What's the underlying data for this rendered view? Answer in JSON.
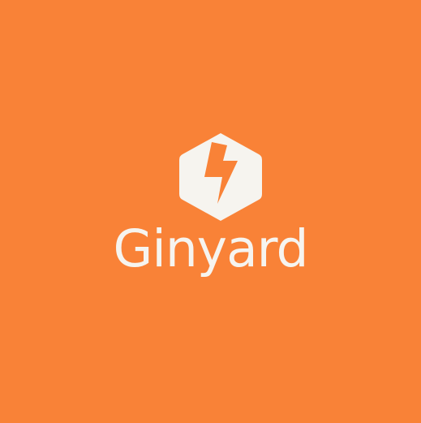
{
  "brand": {
    "name": "Ginyard",
    "logo_icon": "hexagon-lightning-bolt-icon",
    "background_color": "#F98237",
    "foreground_color": "#F6F4EF"
  }
}
